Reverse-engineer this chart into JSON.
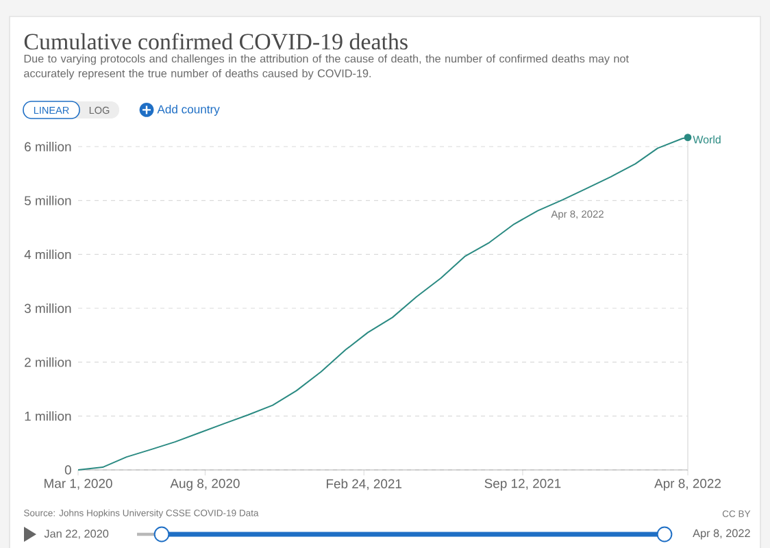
{
  "chart_data": {
    "type": "line",
    "title": "Cumulative confirmed COVID-19 deaths",
    "subtitle": "Due to varying protocols and challenges in the attribution of the cause of death, the number of confirmed deaths may not accurately represent the true number of deaths caused by COVID-19.",
    "x": [
      "2020-03-01",
      "2020-04-01",
      "2020-05-01",
      "2020-06-01",
      "2020-07-01",
      "2020-08-01",
      "2020-09-01",
      "2020-10-01",
      "2020-11-01",
      "2020-12-01",
      "2021-01-01",
      "2021-02-01",
      "2021-03-01",
      "2021-04-01",
      "2021-05-01",
      "2021-06-01",
      "2021-07-01",
      "2021-08-01",
      "2021-09-01",
      "2021-10-01",
      "2021-11-01",
      "2021-12-01",
      "2022-01-01",
      "2022-02-01",
      "2022-03-01",
      "2022-04-01",
      "2022-04-08"
    ],
    "series": [
      {
        "name": "World",
        "color": "#2a8a82",
        "values": [
          0,
          50000,
          240000,
          380000,
          520000,
          690000,
          860000,
          1020000,
          1200000,
          1470000,
          1820000,
          2230000,
          2550000,
          2830000,
          3210000,
          3560000,
          3960000,
          4220000,
          4560000,
          4810000,
          5010000,
          5220000,
          5440000,
          5680000,
          5970000,
          6150000,
          6170000
        ]
      }
    ],
    "xlim": [
      "2020-03-01",
      "2022-04-08"
    ],
    "xticks": [
      {
        "value": "2020-03-01",
        "label": "Mar 1, 2020"
      },
      {
        "value": "2020-08-08",
        "label": "Aug 8, 2020"
      },
      {
        "value": "2021-02-24",
        "label": "Feb 24, 2021"
      },
      {
        "value": "2021-09-12",
        "label": "Sep 12, 2021"
      },
      {
        "value": "2022-04-08",
        "label": "Apr 8, 2022"
      }
    ],
    "ylim": [
      0,
      6200000
    ],
    "yticks": [
      0,
      {
        "value": 1000000,
        "label": "1 million"
      },
      {
        "value": 2000000,
        "label": "2 million"
      },
      {
        "value": 3000000,
        "label": "3 million"
      },
      {
        "value": 4000000,
        "label": "4 million"
      },
      {
        "value": 5000000,
        "label": "5 million"
      },
      {
        "value": 6000000,
        "label": "6 million"
      }
    ],
    "grid": "y",
    "ref_lines": [
      {
        "axis": "x",
        "value": "2022-04-08",
        "color": "#e2e2e2"
      }
    ],
    "annotations": [
      "Apr 8, 2022",
      "Source: Johns Hopkins University CSSE COVID-19 Data",
      "CC BY",
      "LINEAR",
      "LOG",
      "Add country",
      "Jan 22, 2020",
      "Apr 8, 2022"
    ]
  }
}
